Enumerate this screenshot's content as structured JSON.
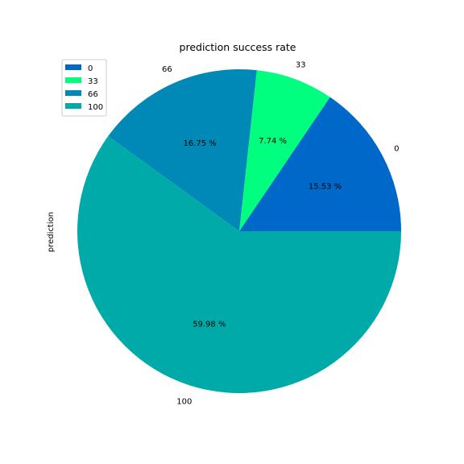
{
  "chart_data": {
    "type": "pie",
    "title": "prediction success rate",
    "ylabel": "prediction",
    "categories": [
      "0",
      "33",
      "66",
      "100"
    ],
    "values": [
      15.53,
      7.74,
      16.75,
      59.98
    ],
    "pct_labels": [
      "15.53 %",
      "7.74 %",
      "16.75 %",
      "59.98 %"
    ],
    "colors": [
      "#0068c9",
      "#00ff7f",
      "#0088b6",
      "#00aaa8"
    ],
    "start_angle_deg": 0,
    "direction": "counterclockwise",
    "legend": {
      "placement": "top-left",
      "entries": [
        "0",
        "33",
        "66",
        "100"
      ]
    }
  }
}
